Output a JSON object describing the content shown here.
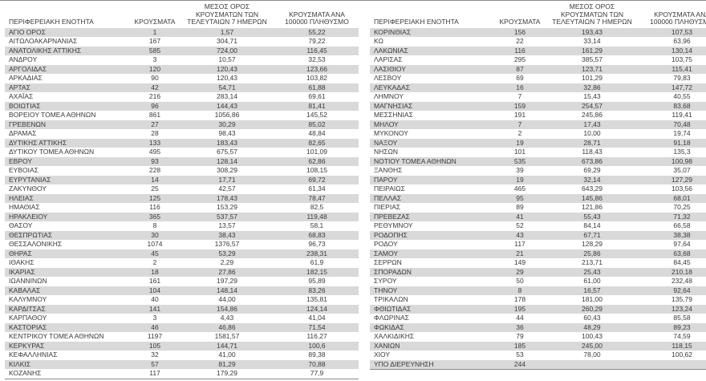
{
  "colors": {
    "stripe": "#d9d9d9",
    "text": "#3a3a3a",
    "border": "#8a8a8a"
  },
  "chart_data": {
    "type": "table",
    "columns": [
      "ΠΕΡΙΦΕΡΕΙΑΚΗ ΕΝΟΤΗΤΑ",
      "ΚΡΟΥΣΜΑΤΑ",
      "ΜΕΣΟΣ ΟΡΟΣ ΚΡΟΥΣΜΑΤΩΝ ΤΩΝ ΤΕΛΕΥΤΑΙΩΝ 7 ΗΜΕΡΩΝ",
      "ΚΡΟΥΣΜΑΤΑ ΑΝΑ 100000 ΠΛΗΘΥΣΜΟ"
    ],
    "left_rows": [
      [
        "ΑΓΙΟ ΟΡΟΣ",
        "1",
        "1,57",
        "55,22"
      ],
      [
        "ΑΙΤΩΛΟΑΚΑΡΝΑΝΙΑΣ",
        "167",
        "304,71",
        "79,22"
      ],
      [
        "ΑΝΑΤΟΛΙΚΗΣ ΑΤΤΙΚΗΣ",
        "585",
        "724,00",
        "116,45"
      ],
      [
        "ΑΝΔΡΟΥ",
        "3",
        "10,57",
        "32,53"
      ],
      [
        "ΑΡΓΟΛΙΔΑΣ",
        "120",
        "120,43",
        "123,66"
      ],
      [
        "ΑΡΚΑΔΙΑΣ",
        "90",
        "120,43",
        "103,82"
      ],
      [
        "ΑΡΤΑΣ",
        "42",
        "54,71",
        "61,88"
      ],
      [
        "ΑΧΑΪΑΣ",
        "216",
        "283,14",
        "69,61"
      ],
      [
        "ΒΟΙΩΤΙΑΣ",
        "96",
        "144,43",
        "81,41"
      ],
      [
        "ΒΟΡΕΙΟΥ ΤΟΜΕΑ ΑΘΗΝΩΝ",
        "861",
        "1056,86",
        "145,52"
      ],
      [
        "ΓΡΕΒΕΝΩΝ",
        "27",
        "30,29",
        "85,02"
      ],
      [
        "ΔΡΑΜΑΣ",
        "28",
        "98,43",
        "48,84"
      ],
      [
        "ΔΥΤΙΚΗΣ ΑΤΤΙΚΗΣ",
        "133",
        "183,43",
        "82,65"
      ],
      [
        "ΔΥΤΙΚΟΥ ΤΟΜΕΑ ΑΘΗΝΩΝ",
        "495",
        "675,57",
        "101,09"
      ],
      [
        "ΕΒΡΟΥ",
        "93",
        "128,14",
        "62,86"
      ],
      [
        "ΕΥΒΟΙΑΣ",
        "228",
        "308,29",
        "108,15"
      ],
      [
        "ΕΥΡΥΤΑΝΙΑΣ",
        "14",
        "17,71",
        "69,72"
      ],
      [
        "ΖΑΚΥΝΘΟΥ",
        "25",
        "42,57",
        "61,34"
      ],
      [
        "ΗΛΕΙΑΣ",
        "125",
        "178,43",
        "78,47"
      ],
      [
        "ΗΜΑΘΙΑΣ",
        "116",
        "153,29",
        "82,5"
      ],
      [
        "ΗΡΑΚΛΕΙΟΥ",
        "365",
        "537,57",
        "119,48"
      ],
      [
        "ΘΑΣΟΥ",
        "8",
        "13,57",
        "58,1"
      ],
      [
        "ΘΕΣΠΡΩΤΙΑΣ",
        "30",
        "38,43",
        "68,83"
      ],
      [
        "ΘΕΣΣΑΛΟΝΙΚΗΣ",
        "1074",
        "1376,57",
        "96,73"
      ],
      [
        "ΘΗΡΑΣ",
        "45",
        "53,29",
        "238,31"
      ],
      [
        "ΙΘΑΚΗΣ",
        "2",
        "2,29",
        "61,9"
      ],
      [
        "ΙΚΑΡΙΑΣ",
        "18",
        "27,86",
        "182,15"
      ],
      [
        "ΙΩΑΝΝΙΝΩΝ",
        "161",
        "197,29",
        "95,89"
      ],
      [
        "ΚΑΒΑΛΑΣ",
        "104",
        "148,14",
        "83,26"
      ],
      [
        "ΚΑΛΥΜΝΟΥ",
        "40",
        "44,00",
        "135,81"
      ],
      [
        "ΚΑΡΔΙΤΣΑΣ",
        "141",
        "154,86",
        "124,14"
      ],
      [
        "ΚΑΡΠΑΘΟΥ",
        "3",
        "4,43",
        "41,04"
      ],
      [
        "ΚΑΣΤΟΡΙΑΣ",
        "46",
        "46,86",
        "71,54"
      ],
      [
        "ΚΕΝΤΡΙΚΟΥ ΤΟΜΕΑ ΑΘΗΝΩΝ",
        "1197",
        "1581,57",
        "116,27"
      ],
      [
        "ΚΕΡΚΥΡΑΣ",
        "105",
        "144,71",
        "100,6"
      ],
      [
        "ΚΕΦΑΛΛΗΝΙΑΣ",
        "32",
        "41,00",
        "89,38"
      ],
      [
        "ΚΙΛΚΙΣ",
        "57",
        "81,29",
        "70,88"
      ],
      [
        "ΚΟΖΑΝΗΣ",
        "117",
        "179,29",
        "77,9"
      ]
    ],
    "right_rows": [
      [
        "ΚΟΡΙΝΘΙΑΣ",
        "156",
        "193,43",
        "107,53"
      ],
      [
        "ΚΩ",
        "22",
        "33,14",
        "63,96"
      ],
      [
        "ΛΑΚΩΝΙΑΣ",
        "116",
        "161,29",
        "130,14"
      ],
      [
        "ΛΑΡΙΣΑΣ",
        "295",
        "385,57",
        "103,75"
      ],
      [
        "ΛΑΣΙΘΙΟΥ",
        "87",
        "123,71",
        "115,41"
      ],
      [
        "ΛΕΣΒΟΥ",
        "69",
        "101,29",
        "79,83"
      ],
      [
        "ΛΕΥΚΑΔΑΣ",
        "16",
        "32,86",
        "147,72"
      ],
      [
        "ΛΗΜΝΟΥ",
        "7",
        "15,43",
        "40,55"
      ],
      [
        "ΜΑΓΝΗΣΙΑΣ",
        "159",
        "254,57",
        "83,68"
      ],
      [
        "ΜΕΣΣΗΝΙΑΣ",
        "191",
        "245,86",
        "119,41"
      ],
      [
        "ΜΗΛΟΥ",
        "7",
        "17,43",
        "70,48"
      ],
      [
        "ΜΥΚΟΝΟΥ",
        "2",
        "10,00",
        "19,74"
      ],
      [
        "ΝΑΞΟΥ",
        "19",
        "28,71",
        "91,18"
      ],
      [
        "ΝΗΣΩΝ",
        "101",
        "118,43",
        "135,3"
      ],
      [
        "ΝΟΤΙΟΥ ΤΟΜΕΑ ΑΘΗΝΩΝ",
        "535",
        "673,86",
        "100,98"
      ],
      [
        "ΞΑΝΘΗΣ",
        "39",
        "69,29",
        "35,07"
      ],
      [
        "ΠΑΡΟΥ",
        "19",
        "32,14",
        "127,29"
      ],
      [
        "ΠΕΙΡΑΙΩΣ",
        "465",
        "643,29",
        "103,56"
      ],
      [
        "ΠΕΛΛΑΣ",
        "95",
        "145,86",
        "68,01"
      ],
      [
        "ΠΙΕΡΙΑΣ",
        "89",
        "121,86",
        "70,25"
      ],
      [
        "ΠΡΕΒΕΖΑΣ",
        "41",
        "55,43",
        "71,32"
      ],
      [
        "ΡΕΘΥΜΝΟΥ",
        "52",
        "84,14",
        "66,58"
      ],
      [
        "ΡΟΔΟΠΗΣ",
        "43",
        "67,71",
        "38,38"
      ],
      [
        "ΡΟΔΟΥ",
        "117",
        "128,29",
        "97,64"
      ],
      [
        "ΣΑΜΟΥ",
        "21",
        "25,86",
        "63,68"
      ],
      [
        "ΣΕΡΡΩΝ",
        "149",
        "213,71",
        "84,45"
      ],
      [
        "ΣΠΟΡΑΔΩΝ",
        "29",
        "25,43",
        "210,18"
      ],
      [
        "ΣΥΡΟΥ",
        "50",
        "61,00",
        "232,48"
      ],
      [
        "ΤΗΝΟΥ",
        "8",
        "16,57",
        "92,64"
      ],
      [
        "ΤΡΙΚΑΛΩΝ",
        "178",
        "181,00",
        "135,79"
      ],
      [
        "ΦΘΙΩΤΙΔΑΣ",
        "195",
        "260,29",
        "123,24"
      ],
      [
        "ΦΛΩΡΙΝΑΣ",
        "44",
        "60,43",
        "85,58"
      ],
      [
        "ΦΩΚΙΔΑΣ",
        "36",
        "48,29",
        "89,23"
      ],
      [
        "ΧΑΛΚΙΔΙΚΗΣ",
        "79",
        "100,43",
        "74,59"
      ],
      [
        "ΧΑΝΙΩΝ",
        "185",
        "245,00",
        "118,15"
      ],
      [
        "ΧΙΟΥ",
        "53",
        "78,00",
        "100,62"
      ],
      [
        "ΥΠΟ ΔΙΕΡΕΥΝΗΣΗ",
        "244",
        "",
        ""
      ]
    ]
  }
}
